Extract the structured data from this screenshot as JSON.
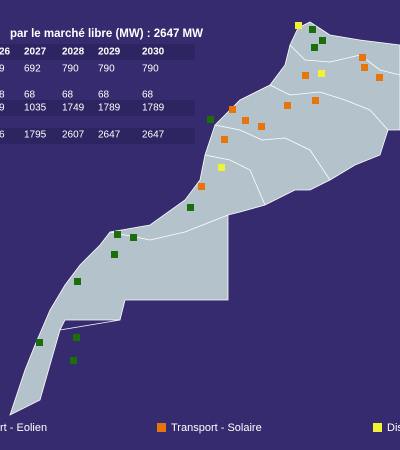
{
  "title": "par le marché libre (MW) : 2647 MW",
  "table": {
    "header": [
      "26",
      "2027",
      "2028",
      "2029",
      "2030"
    ],
    "rows": [
      [
        "9",
        "692",
        "790",
        "790",
        "790"
      ],
      [
        "8",
        "68",
        "68",
        "68",
        "68"
      ],
      [
        "9",
        "1035",
        "1749",
        "1789",
        "1789"
      ],
      [
        "6",
        "1795",
        "2607",
        "2647",
        "2647"
      ]
    ]
  },
  "legend": [
    {
      "label": "rt - Eolien",
      "color": "#1b6e0a"
    },
    {
      "label": "Transport - Solaire",
      "color": "#e8740c"
    },
    {
      "label": "Dis",
      "color": "#f2f235"
    }
  ]
}
